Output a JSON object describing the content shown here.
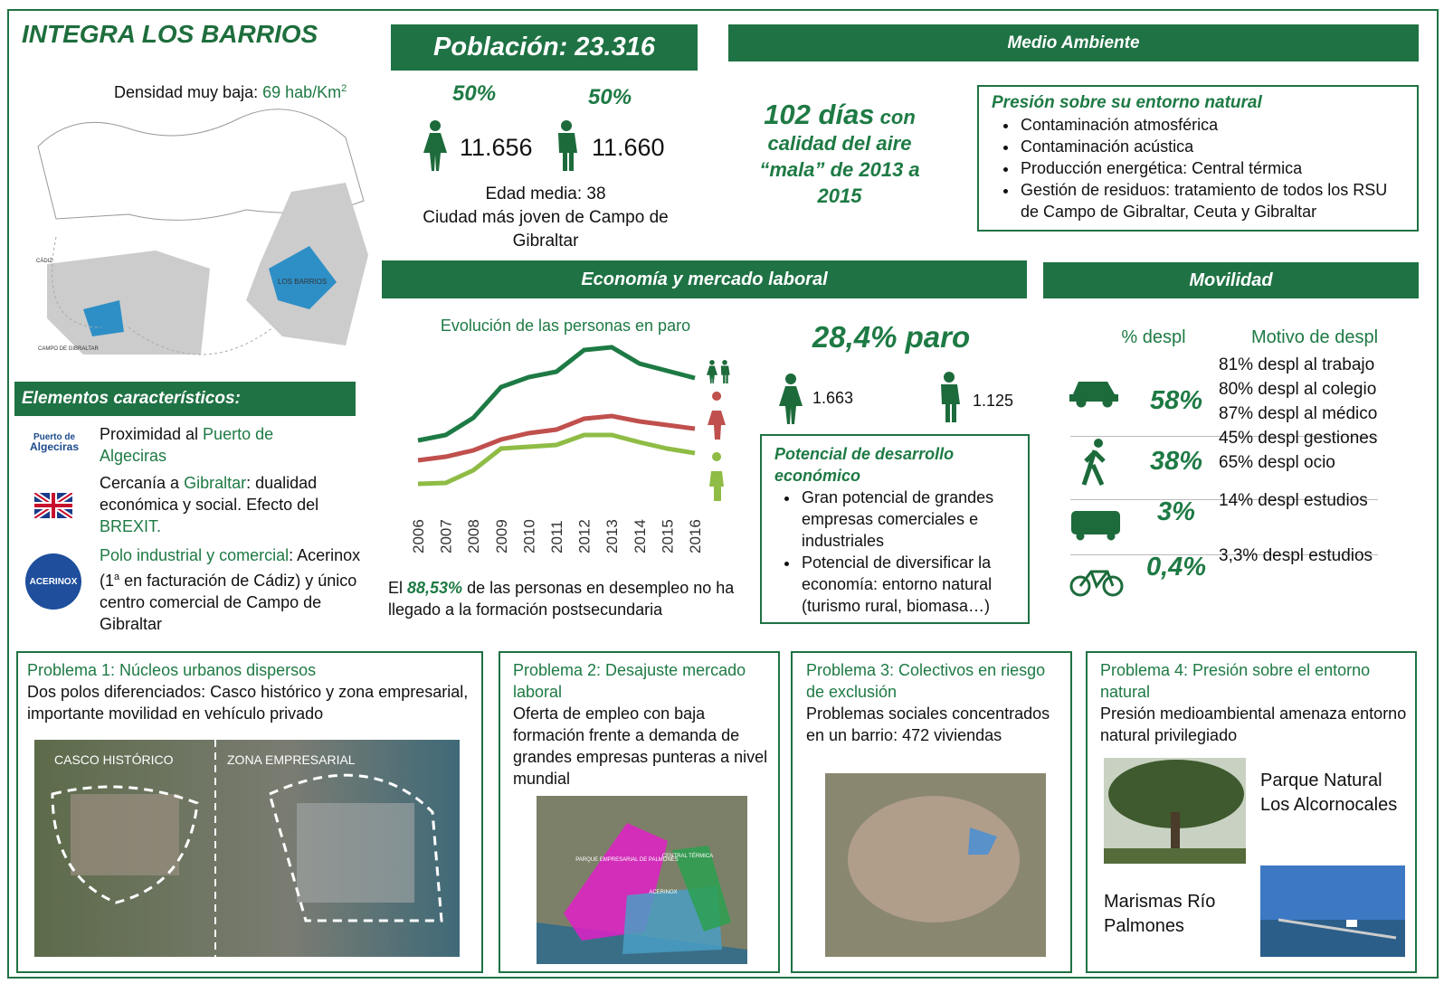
{
  "header": {
    "title": "INTEGRA LOS BARRIOS",
    "density": [
      {
        "text": "Densidad muy baja: "
      },
      {
        "text": "69 hab/Km",
        "hl": true
      },
      {
        "text": "2",
        "hl": true,
        "sup": true
      }
    ],
    "map_labels": [
      "LOS BARRIOS",
      "CAMPO DE GIBRALTAR",
      "CÁDIZ"
    ]
  },
  "elements": {
    "title": "Elementos característicos:",
    "logo_port": [
      "Puerto de",
      "Algeciras"
    ],
    "logo_acerinox": "ACERINOX",
    "items": [
      [
        {
          "text": "Proximidad al "
        },
        {
          "text": "Puerto de Algeciras",
          "hl": true
        }
      ],
      [
        {
          "text": "Cercanía a "
        },
        {
          "text": "Gibraltar",
          "hl": true
        },
        {
          "text": ": dualidad económica y social. Efecto del "
        },
        {
          "text": "BREXIT.",
          "hl": true
        }
      ],
      [
        {
          "text": "Polo industrial y comercial",
          "hl": true
        },
        {
          "text": ": Acerinox (1"
        },
        {
          "text": "a",
          "sup": true
        },
        {
          "text": " en facturación de Cádiz) y único centro comercial de Campo de Gibraltar"
        }
      ]
    ]
  },
  "population": {
    "title": "Población: 23.316",
    "women_pct": "50%",
    "men_pct": "50%",
    "women": "11.656",
    "men": "11.660",
    "age": "Edad media: 38",
    "note": "Ciudad más joven de Campo de Gibraltar"
  },
  "environment": {
    "title": "Medio Ambiente",
    "air": [
      {
        "text": "102 días",
        "big": true
      },
      {
        "text": " con",
        "mid": true
      },
      {
        "text": " calidad del aire “mala” de 2013 a 2015"
      }
    ],
    "pressure_title": "Presión sobre su entorno natural",
    "pressure_items": [
      "Contaminación atmosférica",
      "Contaminación acústica",
      "Producción energética: Central térmica",
      "Gestión de residuos: tratamiento de todos los RSU de Campo de Gibraltar,  Ceuta y Gibraltar"
    ]
  },
  "economy": {
    "title": "Economía y mercado laboral",
    "unemployment": "28,4% paro",
    "women": "1.663",
    "men": "1.125",
    "education": [
      {
        "text": "El "
      },
      {
        "text": "88,53%",
        "em": true
      },
      {
        "text": " de las personas en desempleo no ha llegado a la formación postsecundaria"
      }
    ],
    "potential_title": "Potencial de desarrollo económico",
    "potential_items": [
      "Gran potencial de grandes empresas comerciales e industriales",
      "Potencial de diversificar la economía: entorno natural (turismo rural, biomasa…)"
    ]
  },
  "chart_data": {
    "type": "line",
    "title": "Evolución de las personas en paro",
    "categories": [
      "2006",
      "2007",
      "2008",
      "2009",
      "2010",
      "2011",
      "2012",
      "2013",
      "2014",
      "2015",
      "2016"
    ],
    "series": [
      {
        "color": "#1d7a44",
        "values": [
          1400,
          1520,
          1900,
          2580,
          2800,
          2920,
          3400,
          3460,
          3100,
          2940,
          2780
        ]
      },
      {
        "color": "#c0504d",
        "values": [
          960,
          1040,
          1180,
          1420,
          1560,
          1640,
          1880,
          1940,
          1820,
          1740,
          1660
        ]
      },
      {
        "color": "#8fbc45",
        "values": [
          440,
          460,
          740,
          1220,
          1260,
          1300,
          1520,
          1520,
          1360,
          1220,
          1120
        ]
      }
    ]
  },
  "mobility": {
    "title": "Movilidad",
    "col_pct": "% despl",
    "col_reason": "Motivo de despl",
    "rows": [
      {
        "pct": "58%",
        "reasons": [
          "81% despl al trabajo",
          "80% despl al colegio",
          "87% despl al médico"
        ]
      },
      {
        "pct": "38%",
        "reasons": [
          "45% despl gestiones",
          "65% despl ocio"
        ]
      },
      {
        "pct": "3%",
        "reasons": [
          "14% despl estudios"
        ]
      },
      {
        "pct": "0,4%",
        "reasons": [
          "3,3% despl estudios"
        ]
      }
    ]
  },
  "problems": [
    {
      "title": "Problema 1: Núcleos urbanos dispersos",
      "text": "Dos polos diferenciados: Casco histórico y zona empresarial, importante movilidad en vehículo privado",
      "image_labels": [
        "CASCO HISTÓRICO",
        "ZONA EMPRESARIAL"
      ]
    },
    {
      "title": "Problema 2: Desajuste mercado laboral",
      "text": "Oferta de empleo con baja formación frente a demanda de grandes empresas punteras a nivel mundial",
      "image_labels": [
        "PARQUE EMPRESARIAL DE PALMONES",
        "CENTRAL TÉRMICA",
        "ACERINOX"
      ]
    },
    {
      "title": "Problema 3: Colectivos en riesgo de exclusión",
      "text": "Problemas sociales concentrados en un barrio: 472 viviendas"
    },
    {
      "title": "Problema 4: Presión sobre el entorno natural",
      "text": "Presión medioambiental amenaza entorno natural  privilegiado",
      "captions": [
        "Parque Natural Los Alcornocales",
        "Marismas Río Palmones"
      ]
    }
  ]
}
